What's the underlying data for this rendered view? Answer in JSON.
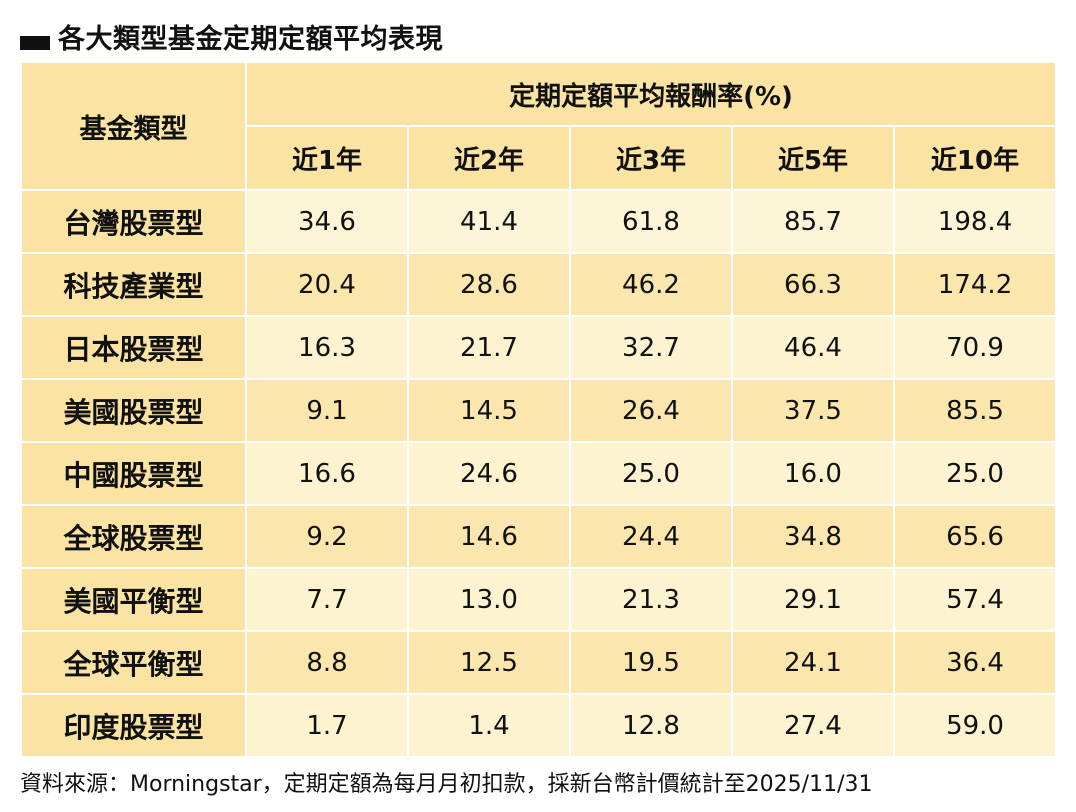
{
  "title": "各大類型基金定期定額平均表現",
  "header": {
    "type_label": "基金類型",
    "group_label": "定期定額平均報酬率(%)",
    "periods": [
      "近1年",
      "近2年",
      "近3年",
      "近5年",
      "近10年"
    ]
  },
  "rows": [
    {
      "type": "台灣股票型",
      "values": [
        "34.6",
        "41.4",
        "61.8",
        "85.7",
        "198.4"
      ]
    },
    {
      "type": "科技產業型",
      "values": [
        "20.4",
        "28.6",
        "46.2",
        "66.3",
        "174.2"
      ]
    },
    {
      "type": "日本股票型",
      "values": [
        "16.3",
        "21.7",
        "32.7",
        "46.4",
        "70.9"
      ]
    },
    {
      "type": "美國股票型",
      "values": [
        "9.1",
        "14.5",
        "26.4",
        "37.5",
        "85.5"
      ]
    },
    {
      "type": "中國股票型",
      "values": [
        "16.6",
        "24.6",
        "25.0",
        "16.0",
        "25.0"
      ]
    },
    {
      "type": "全球股票型",
      "values": [
        "9.2",
        "14.6",
        "24.4",
        "34.8",
        "65.6"
      ]
    },
    {
      "type": "美國平衡型",
      "values": [
        "7.7",
        "13.0",
        "21.3",
        "29.1",
        "57.4"
      ]
    },
    {
      "type": "全球平衡型",
      "values": [
        "8.8",
        "12.5",
        "19.5",
        "24.1",
        "36.4"
      ]
    },
    {
      "type": "印度股票型",
      "values": [
        "1.7",
        "1.4",
        "12.8",
        "27.4",
        "59.0"
      ]
    }
  ],
  "footnote": "資料來源：Morningstar，定期定額為每月月初扣款，採新台幣計價統計至2025/11/31",
  "colors": {
    "header_bg": "#fae3a3",
    "row_light": "#fdf3d0",
    "row_dark": "#fbe7ad",
    "text": "#111111"
  }
}
